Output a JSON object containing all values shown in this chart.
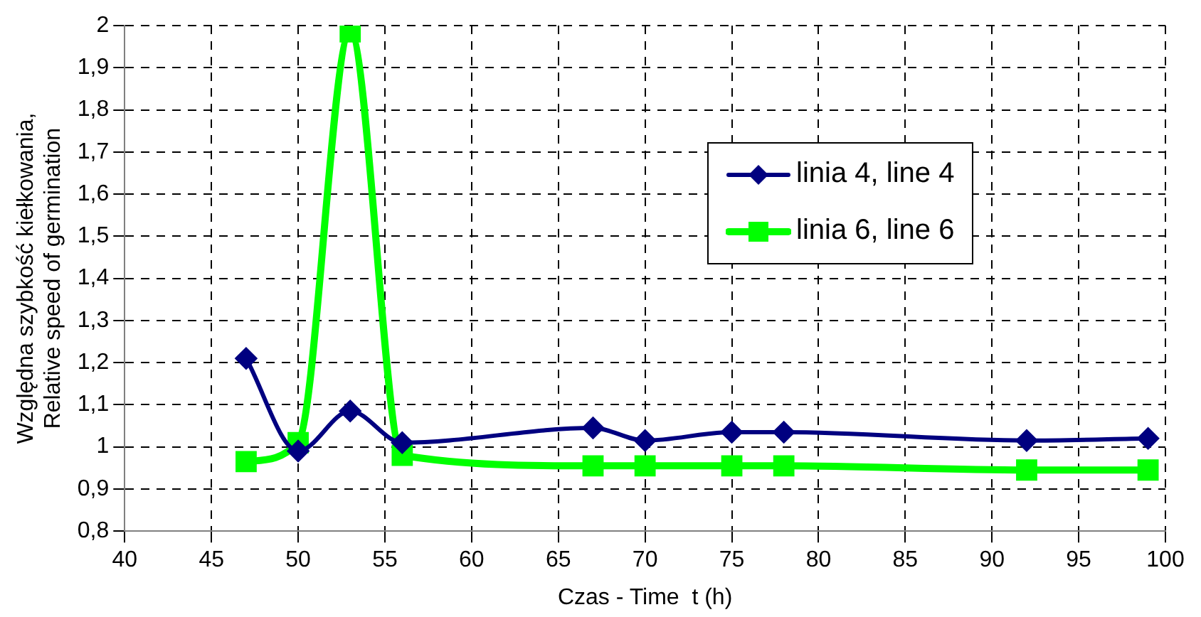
{
  "chart_data": {
    "type": "line",
    "xlabel": "Czas - Time  t (h)",
    "ylabel": "Względna szybkość kiełkowania,\nRelative speed of germination",
    "series": [
      {
        "name": "linia 4, line 4",
        "color": "#000080",
        "marker": "diamond",
        "x": [
          47,
          50,
          53,
          56,
          67,
          70,
          75,
          78,
          92,
          99
        ],
        "values": [
          1.21,
          0.99,
          1.085,
          1.01,
          1.045,
          1.015,
          1.035,
          1.035,
          1.015,
          1.02
        ]
      },
      {
        "name": "linia 6, line 6",
        "color": "#00ff00",
        "marker": "square",
        "x": [
          47,
          50,
          53,
          56,
          67,
          70,
          75,
          78,
          92,
          99
        ],
        "values": [
          0.965,
          1.01,
          1.985,
          0.98,
          0.955,
          0.955,
          0.955,
          0.955,
          0.945,
          0.945
        ]
      }
    ],
    "xlim": [
      40,
      100
    ],
    "xticks": [
      40,
      45,
      50,
      55,
      60,
      65,
      70,
      75,
      80,
      85,
      90,
      95,
      100
    ],
    "ylim": [
      0.8,
      2
    ],
    "yticks": [
      {
        "value": 0.8,
        "label": "0,8"
      },
      {
        "value": 0.9,
        "label": "0,9"
      },
      1,
      {
        "value": 1.1,
        "label": "1,1"
      },
      {
        "value": 1.2,
        "label": "1,2"
      },
      {
        "value": 1.3,
        "label": "1,3"
      },
      {
        "value": 1.4,
        "label": "1,4"
      },
      {
        "value": 1.5,
        "label": "1,5"
      },
      {
        "value": 1.6,
        "label": "1,6"
      },
      {
        "value": 1.7,
        "label": "1,7"
      },
      {
        "value": 1.8,
        "label": "1,8"
      },
      {
        "value": 1.9,
        "label": "1,9"
      },
      2
    ],
    "grid": true,
    "legend": "top right",
    "line_style": "solid"
  }
}
